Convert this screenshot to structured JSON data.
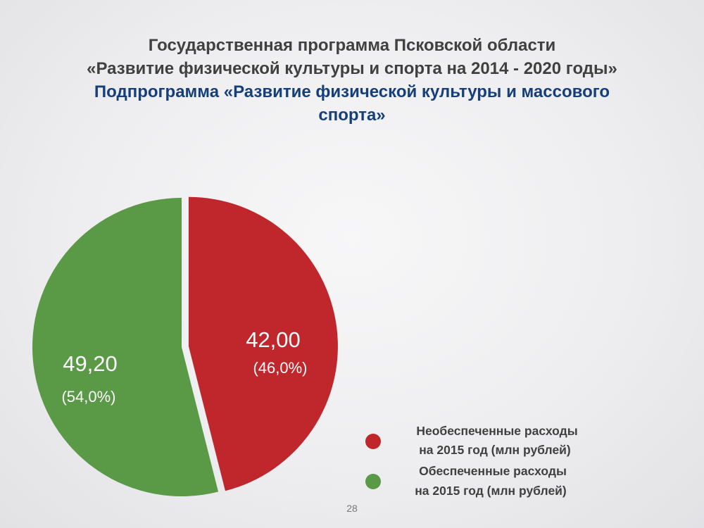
{
  "title": {
    "line1": "Государственная программа Псковской области",
    "line2": "«Развитие физической культуры и спорта на 2014 - 2020 годы»",
    "subtitle_line1": "Подпрограмма «Развитие физической культуры и массового",
    "subtitle_line2": "спорта»"
  },
  "chart_data": {
    "type": "pie",
    "slices": [
      {
        "name": "Необеспеченные расходы на 2015 год (млн рублей)",
        "value": 42.0,
        "label": "42,00",
        "percent": 46.0,
        "percent_label": "(46,0%)",
        "color": "#c0272d"
      },
      {
        "name": "Обеспеченные расходы на 2015 год (млн рублей)",
        "value": 49.2,
        "label": "49,20",
        "percent": 54.0,
        "percent_label": "(54,0%)",
        "color": "#5a9a46"
      }
    ],
    "legend_placement": "bottom-right",
    "exploded_slice": "42,00"
  },
  "legend": [
    {
      "line1": "Необеспеченные расходы",
      "line2": "на 2015 год  (млн рублей)",
      "color": "#c0272d"
    },
    {
      "line1": "Обеспеченные расходы",
      "line2": "на 2015 год (млн рублей)",
      "color": "#5a9a46"
    }
  ],
  "page_number": "28"
}
